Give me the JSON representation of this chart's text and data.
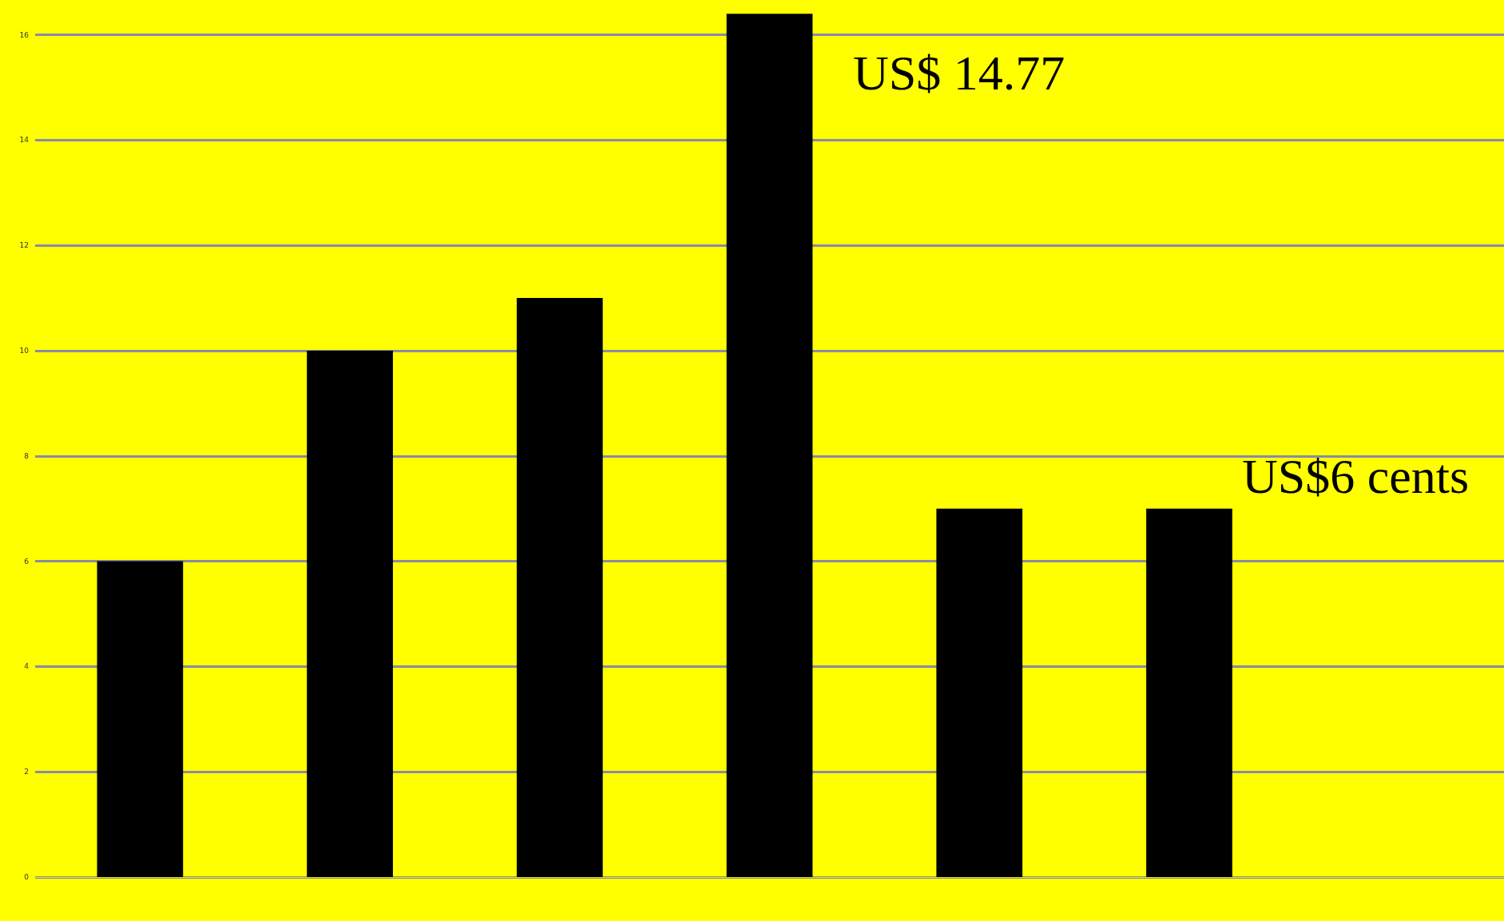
{
  "chart_data": {
    "type": "bar",
    "categories": [
      null,
      null,
      null,
      null,
      null,
      null,
      null
    ],
    "values": [
      6,
      10,
      11,
      16.4,
      7,
      7,
      null
    ],
    "color": "#000000",
    "ylim": [
      0,
      16.6
    ],
    "yticks": [
      0,
      2,
      4,
      6,
      8,
      10,
      12,
      14,
      16
    ],
    "grid": "y",
    "tick_labels": "y",
    "annotations": [
      "US$ 14.77",
      "US$6 cents"
    ]
  }
}
